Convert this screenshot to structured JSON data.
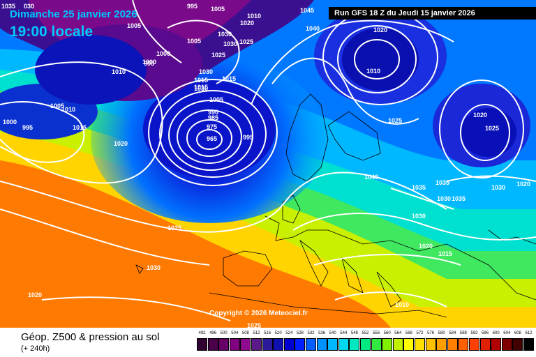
{
  "header": {
    "date": "Dimanche 25 janvier 2026",
    "time": "19:00 locale",
    "run": "Run GFS 18 Z du Jeudi 15 janvier 2026"
  },
  "copyright": "Copyright © 2026 Meteociel.fr",
  "footer": {
    "title": "Géop. Z500 & pression au sol",
    "subtitle": "(+ 240h)"
  },
  "legend": {
    "ticks": [
      "492",
      "496",
      "500",
      "504",
      "508",
      "512",
      "516",
      "520",
      "524",
      "528",
      "532",
      "536",
      "540",
      "544",
      "548",
      "552",
      "556",
      "560",
      "564",
      "568",
      "572",
      "576",
      "580",
      "584",
      "588",
      "592",
      "596",
      "600",
      "604",
      "608",
      "612"
    ],
    "colors": [
      "#300030",
      "#4a004a",
      "#660066",
      "#800080",
      "#8e0a8e",
      "#5a1a8a",
      "#2a1a9a",
      "#1010b0",
      "#0000d0",
      "#0020ff",
      "#0060ff",
      "#0090ff",
      "#00b8ff",
      "#00d8f0",
      "#00e8c0",
      "#00e880",
      "#30e840",
      "#80f000",
      "#c0f000",
      "#ffff00",
      "#ffe000",
      "#ffc000",
      "#ffa000",
      "#ff8000",
      "#ff6000",
      "#ff4000",
      "#e02000",
      "#b00000",
      "#800000",
      "#400000",
      "#000000"
    ]
  },
  "isobar_labels": [
    "1035",
    "030",
    "995",
    "1005",
    "1010",
    "1045",
    "1005",
    "1030",
    "1020",
    "1040",
    "1005",
    "1000",
    "1030",
    "1025",
    "1025",
    "1020",
    "1000",
    "995",
    "1030",
    "1015",
    "1010",
    "1015",
    "1030",
    "1015",
    "1005",
    "1010",
    "1005",
    "990",
    "985",
    "975",
    "965",
    "995",
    "1010",
    "1015",
    "1000",
    "995",
    "1020",
    "1025",
    "1020",
    "1025",
    "1040",
    "1035",
    "1035",
    "1030",
    "1020",
    "1035",
    "1030",
    "1030",
    "1020",
    "1015",
    "1025",
    "1030",
    "1010",
    "1020",
    "1025"
  ]
}
